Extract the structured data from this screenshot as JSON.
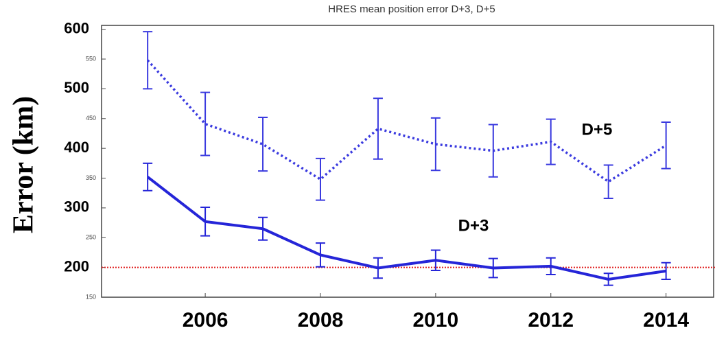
{
  "chart_data": {
    "type": "line",
    "title": "HRES mean position error D+3, D+5",
    "y_label": "Error (km)",
    "x": [
      2005,
      2006,
      2007,
      2008,
      2009,
      2010,
      2011,
      2012,
      2013,
      2014
    ],
    "xlim": [
      2004.2,
      2014.85
    ],
    "xticks": [
      2006,
      2008,
      2010,
      2012,
      2014
    ],
    "ylim": [
      150,
      610
    ],
    "yticks": [
      200,
      300,
      400,
      500,
      600
    ],
    "yticks_minor": [
      150,
      250,
      350,
      450,
      550
    ],
    "series": [
      {
        "name": "D+5",
        "color": "#3a3adf",
        "dash": "dotted",
        "values": [
          548,
          441,
          407,
          348,
          433,
          407,
          396,
          411,
          344,
          405
        ],
        "errors": [
          48,
          53,
          45,
          35,
          51,
          44,
          44,
          38,
          28,
          39
        ]
      },
      {
        "name": "D+3",
        "color": "#2525d8",
        "dash": "solid",
        "values": [
          352,
          277,
          265,
          221,
          199,
          212,
          199,
          202,
          180,
          194
        ],
        "errors": [
          23,
          24,
          19,
          20,
          17,
          17,
          16,
          14,
          10,
          14
        ]
      }
    ],
    "hline": {
      "value": 200,
      "color": "#e02020"
    }
  }
}
